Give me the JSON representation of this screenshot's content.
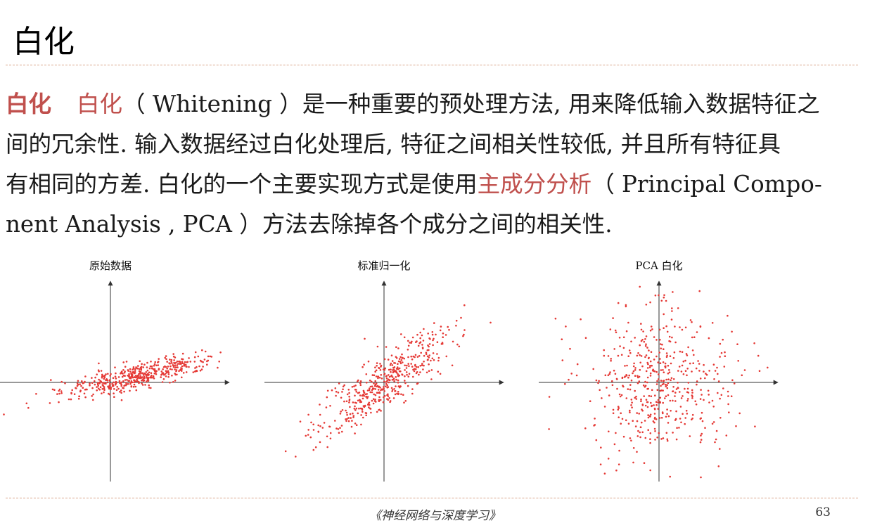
{
  "title": "白化",
  "paragraph": {
    "term": "白化",
    "line1": {
      "highlight": "白化",
      "rest": "（ Whitening ）是一种重要的预处理方法, 用来降低输入数据特征之"
    },
    "line2": "间的冗余性. 输入数据经过白化处理后, 特征之间相关性较低, 并且所有特征具",
    "line3": {
      "before": "有相同的方差. 白化的一个主要实现方式是使用",
      "highlight": "主成分分析",
      "after": "（ Principal Compo-"
    },
    "line4": "nent Analysis , PCA ）方法去除掉各个成分之间的相关性."
  },
  "chart_data": [
    {
      "type": "scatter",
      "title": "原始数据",
      "distribution": "positively correlated, elongated cloud shifted to the right of the origin",
      "color": "#e53935"
    },
    {
      "type": "scatter",
      "title": "标准归一化",
      "distribution": "centered at origin, positively correlated, unit variance per axis",
      "color": "#e53935"
    },
    {
      "type": "scatter",
      "title": "PCA 白化",
      "distribution": "centered at origin, uncorrelated, isotropic round cloud",
      "color": "#e53935"
    }
  ],
  "footer": {
    "book": "《神经网络与深度学习》",
    "page": "63"
  },
  "colors": {
    "accent": "#c0504d",
    "rule": "#d9a58a",
    "points": "#e53935"
  }
}
